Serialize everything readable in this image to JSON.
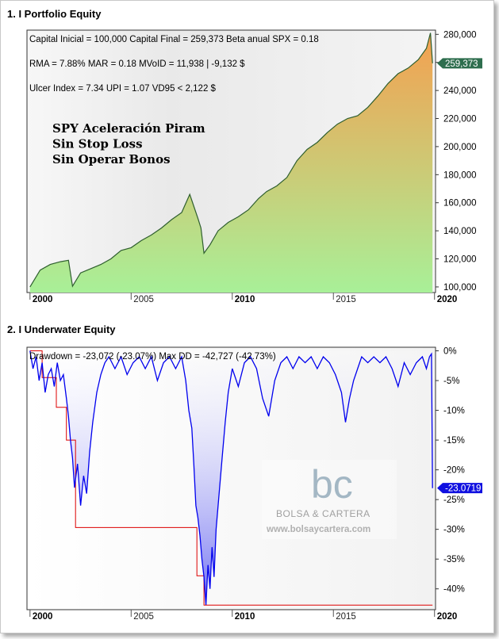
{
  "panels": {
    "equity_title": "1. I Portfolio Equity",
    "underwater_title": "2. I Underwater Equity"
  },
  "colors": {
    "equity_line": "#2e5e2e",
    "equity_fill_top": "#f4a050",
    "equity_fill_bottom": "#a8f098",
    "drawdown_line": "#0000ee",
    "maxdd_line": "#dd0000",
    "last_equity_badge": "#2e6e4e",
    "last_dd_badge": "#1010e0"
  },
  "chart_data": [
    {
      "type": "area",
      "name": "Portfolio Equity",
      "stats": [
        "Capital Inicial = 100,000  Capital Final = 259,373  Beta anual SPX = 0.18",
        "RMA = 7.88%   MAR = 0.18  MVoID = 11,938 | -9,132 $",
        "Ulcer Index = 7.34   UPI = 1.07   VD95 < 2,122 $"
      ],
      "annotation": [
        "SPY Aceleración Piram",
        "Sin Stop Loss",
        "Sin Operar Bonos"
      ],
      "x": [
        2000.0,
        2000.5,
        2001.0,
        2001.5,
        2001.9,
        2002.1,
        2002.5,
        2003.0,
        2003.5,
        2004.0,
        2004.5,
        2005.0,
        2005.5,
        2006.0,
        2006.5,
        2007.0,
        2007.5,
        2007.9,
        2008.3,
        2008.45,
        2008.6,
        2008.9,
        2009.3,
        2009.8,
        2010.3,
        2010.8,
        2011.3,
        2011.7,
        2012.2,
        2012.7,
        2013.2,
        2013.7,
        2014.2,
        2014.7,
        2015.2,
        2015.7,
        2016.2,
        2016.7,
        2017.2,
        2017.7,
        2018.2,
        2018.7,
        2019.2,
        2019.6,
        2019.8,
        2019.9
      ],
      "y": [
        100000,
        112000,
        116000,
        118000,
        119000,
        100500,
        110000,
        113000,
        116000,
        120000,
        126000,
        128000,
        133000,
        137000,
        142000,
        148000,
        153000,
        166000,
        149000,
        142000,
        124000,
        130000,
        140000,
        146000,
        150000,
        155000,
        163000,
        168000,
        172000,
        178000,
        190000,
        198000,
        203000,
        210000,
        216000,
        220000,
        222000,
        228000,
        236000,
        245000,
        252000,
        256000,
        262000,
        270000,
        281000,
        259373
      ],
      "y_ticks": [
        "100,000",
        "120,000",
        "140,000",
        "160,000",
        "180,000",
        "200,000",
        "220,000",
        "240,000",
        "260,000",
        "280,000"
      ],
      "y_tick_values": [
        100000,
        120000,
        140000,
        160000,
        180000,
        200000,
        220000,
        240000,
        260000,
        280000
      ],
      "x_ticks": [
        "2000",
        "2005",
        "2010",
        "2015",
        "2020"
      ],
      "x_tick_values": [
        2000,
        2005,
        2010,
        2015,
        2020
      ],
      "xlim": [
        1999.85,
        2020.05
      ],
      "ylim": [
        96000,
        283000
      ],
      "last_value_label": "259,373",
      "last_value": 259373,
      "grid": false
    },
    {
      "type": "line",
      "name": "Underwater Equity",
      "stats": "Drawdown = -23,072 (-23.07%)       Max DD = -42,727 (-42.73%)",
      "drawdown": {
        "x": [
          2000.0,
          2000.15,
          2000.3,
          2000.45,
          2000.6,
          2000.75,
          2000.9,
          2001.05,
          2001.2,
          2001.35,
          2001.5,
          2001.65,
          2001.8,
          2001.9,
          2002.0,
          2002.1,
          2002.2,
          2002.35,
          2002.5,
          2002.65,
          2002.8,
          2002.95,
          2003.1,
          2003.3,
          2003.5,
          2003.7,
          2003.9,
          2004.2,
          2004.5,
          2004.8,
          2005.1,
          2005.4,
          2005.7,
          2006.0,
          2006.3,
          2006.6,
          2006.9,
          2007.2,
          2007.5,
          2007.7,
          2007.85,
          2008.0,
          2008.1,
          2008.2,
          2008.3,
          2008.4,
          2008.5,
          2008.6,
          2008.7,
          2008.8,
          2008.9,
          2009.0,
          2009.1,
          2009.2,
          2009.35,
          2009.5,
          2009.65,
          2009.8,
          2010.0,
          2010.3,
          2010.6,
          2010.9,
          2011.2,
          2011.5,
          2011.8,
          2012.1,
          2012.4,
          2012.7,
          2013.0,
          2013.3,
          2013.6,
          2013.9,
          2014.2,
          2014.5,
          2014.8,
          2015.1,
          2015.4,
          2015.6,
          2015.8,
          2016.0,
          2016.2,
          2016.4,
          2016.7,
          2017.0,
          2017.3,
          2017.6,
          2017.9,
          2018.2,
          2018.5,
          2018.8,
          2019.1,
          2019.4,
          2019.6,
          2019.75,
          2019.85,
          2019.9
        ],
        "y": [
          0,
          -3,
          -1,
          -5,
          -2,
          -7,
          -4,
          -3,
          -6,
          -2,
          -5,
          -4,
          -8,
          -11,
          -15,
          -18,
          -23,
          -19,
          -26,
          -21,
          -24,
          -17,
          -12,
          -7,
          -4,
          -2,
          -1,
          -3,
          -1,
          -4,
          -2,
          -1,
          -3,
          -1,
          -5,
          -2,
          -1,
          -3,
          -1,
          -5,
          -10,
          -13,
          -19,
          -26,
          -28,
          -31,
          -35,
          -38,
          -42.7,
          -36,
          -40,
          -33,
          -38,
          -30,
          -24,
          -18,
          -12,
          -7,
          -3,
          -6,
          -2,
          -1,
          -3,
          -8,
          -11,
          -5,
          -2,
          -1,
          -3,
          -1,
          -2,
          -1,
          -3,
          -1,
          -2,
          -4,
          -7,
          -12,
          -8,
          -5,
          -3,
          -1,
          -2,
          -1,
          -2,
          -1,
          -3,
          -6,
          -2,
          -4,
          -2,
          -1,
          -3,
          -1,
          -0.5,
          -23.07
        ]
      },
      "max_dd": {
        "x": [
          2000.0,
          2000.6,
          2000.6,
          2001.3,
          2001.3,
          2001.8,
          2001.8,
          2002.25,
          2002.25,
          2008.25,
          2008.25,
          2008.6,
          2008.6,
          2019.9
        ],
        "y": [
          0,
          0,
          -4.5,
          -4.5,
          -9.5,
          -9.5,
          -15,
          -15,
          -29.7,
          -29.7,
          -37.8,
          -37.8,
          -42.73,
          -42.73
        ]
      },
      "y_ticks": [
        "0%",
        "-5%",
        "-10%",
        "-15%",
        "-20%",
        "-25%",
        "-30%",
        "-35%",
        "-40%"
      ],
      "y_tick_values": [
        0,
        -5,
        -10,
        -15,
        -20,
        -25,
        -30,
        -35,
        -40
      ],
      "x_ticks": [
        "2000",
        "2005",
        "2010",
        "2015",
        "2020"
      ],
      "x_tick_values": [
        2000,
        2005,
        2010,
        2015,
        2020
      ],
      "xlim": [
        1999.85,
        2020.05
      ],
      "ylim": [
        -43.5,
        0.6
      ],
      "last_value_label": "-23.0719",
      "last_value": -23.0719,
      "grid": false
    }
  ],
  "watermark": {
    "logo_letters": "bc",
    "brand": "BOLSA & CARTERA",
    "url": "www.bolsaycartera.com"
  }
}
